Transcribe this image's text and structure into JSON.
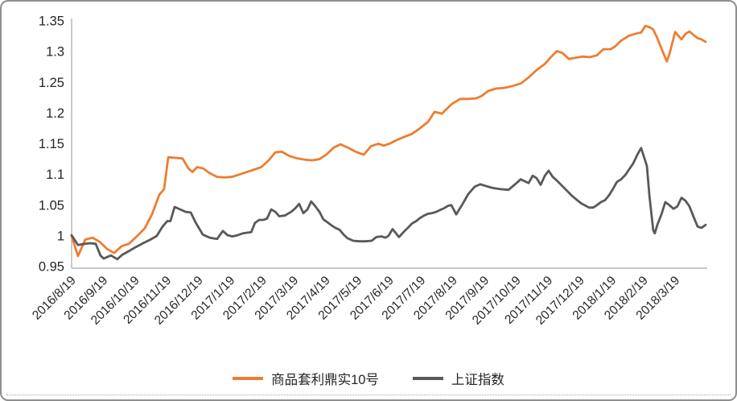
{
  "chart": {
    "background": "#ffffff",
    "border_color": "#8f8f8f",
    "axis_color": "#a8a8a8",
    "text_color": "#262626",
    "y_axis": {
      "labels": [
        "1.35",
        "1.3",
        "1.25",
        "1.2",
        "1.15",
        "1.1",
        "1.05",
        "1",
        "0.95"
      ]
    },
    "legend": [
      {
        "label": "商品套利鼎实10号",
        "color": "#ED7D31"
      },
      {
        "label": "上证指数",
        "color": "#595959"
      }
    ]
  },
  "chart_data": {
    "type": "line",
    "title": "",
    "xlabel": "",
    "ylabel": "",
    "ylim": [
      0.95,
      1.35
    ],
    "y_step": 0.05,
    "grid": false,
    "legend_position": "bottom",
    "categories": [
      "2016/8/19",
      "2016/9/19",
      "2016/10/19",
      "2016/11/19",
      "2016/12/19",
      "2017/1/19",
      "2017/2/19",
      "2017/3/19",
      "2017/4/19",
      "2017/5/19",
      "2017/6/19",
      "2017/7/19",
      "2017/8/19",
      "2017/9/19",
      "2017/10/19",
      "2017/11/19",
      "2017/12/19",
      "2018/1/19",
      "2018/2/19",
      "2018/3/19"
    ],
    "x_note": "points use fractional category-index x (0 = 2016/8/19 tick, 1 unit = 1 month tick)",
    "series": [
      {
        "name": "商品套利鼎实10号",
        "color": "#ED7D31",
        "points": [
          [
            0,
            1.0
          ],
          [
            0.2,
            0.967
          ],
          [
            0.43,
            0.994
          ],
          [
            0.66,
            0.997
          ],
          [
            0.89,
            0.99
          ],
          [
            1.11,
            0.979
          ],
          [
            1.34,
            0.972
          ],
          [
            1.57,
            0.983
          ],
          [
            1.8,
            0.987
          ],
          [
            2.03,
            0.998
          ],
          [
            2.3,
            1.012
          ],
          [
            2.53,
            1.035
          ],
          [
            2.76,
            1.067
          ],
          [
            2.91,
            1.076
          ],
          [
            3.04,
            1.128
          ],
          [
            3.27,
            1.127
          ],
          [
            3.49,
            1.126
          ],
          [
            3.67,
            1.11
          ],
          [
            3.8,
            1.104
          ],
          [
            3.95,
            1.112
          ],
          [
            4.13,
            1.11
          ],
          [
            4.35,
            1.102
          ],
          [
            4.58,
            1.096
          ],
          [
            4.81,
            1.095
          ],
          [
            5.04,
            1.096
          ],
          [
            5.29,
            1.1
          ],
          [
            5.52,
            1.104
          ],
          [
            5.75,
            1.108
          ],
          [
            5.97,
            1.112
          ],
          [
            6.2,
            1.123
          ],
          [
            6.41,
            1.136
          ],
          [
            6.61,
            1.137
          ],
          [
            6.86,
            1.13
          ],
          [
            7.11,
            1.126
          ],
          [
            7.34,
            1.124
          ],
          [
            7.57,
            1.123
          ],
          [
            7.8,
            1.125
          ],
          [
            8.03,
            1.133
          ],
          [
            8.25,
            1.144
          ],
          [
            8.46,
            1.149
          ],
          [
            8.68,
            1.144
          ],
          [
            8.94,
            1.137
          ],
          [
            9.19,
            1.132
          ],
          [
            9.42,
            1.146
          ],
          [
            9.65,
            1.15
          ],
          [
            9.82,
            1.147
          ],
          [
            10.0,
            1.15
          ],
          [
            10.23,
            1.156
          ],
          [
            10.46,
            1.161
          ],
          [
            10.71,
            1.166
          ],
          [
            10.96,
            1.175
          ],
          [
            11.22,
            1.186
          ],
          [
            11.42,
            1.202
          ],
          [
            11.65,
            1.199
          ],
          [
            11.97,
            1.215
          ],
          [
            12.23,
            1.223
          ],
          [
            12.48,
            1.223
          ],
          [
            12.73,
            1.224
          ],
          [
            12.91,
            1.228
          ],
          [
            13.11,
            1.236
          ],
          [
            13.37,
            1.24
          ],
          [
            13.62,
            1.241
          ],
          [
            13.87,
            1.244
          ],
          [
            14.13,
            1.248
          ],
          [
            14.38,
            1.258
          ],
          [
            14.63,
            1.27
          ],
          [
            14.89,
            1.28
          ],
          [
            15.06,
            1.29
          ],
          [
            15.27,
            1.301
          ],
          [
            15.44,
            1.298
          ],
          [
            15.65,
            1.288
          ],
          [
            15.85,
            1.29
          ],
          [
            16.08,
            1.292
          ],
          [
            16.3,
            1.291
          ],
          [
            16.53,
            1.294
          ],
          [
            16.73,
            1.304
          ],
          [
            16.96,
            1.304
          ],
          [
            17.09,
            1.308
          ],
          [
            17.29,
            1.318
          ],
          [
            17.54,
            1.326
          ],
          [
            17.8,
            1.33
          ],
          [
            17.92,
            1.331
          ],
          [
            18.05,
            1.342
          ],
          [
            18.18,
            1.34
          ],
          [
            18.3,
            1.336
          ],
          [
            18.43,
            1.322
          ],
          [
            18.56,
            1.305
          ],
          [
            18.73,
            1.284
          ],
          [
            18.81,
            1.296
          ],
          [
            18.99,
            1.332
          ],
          [
            19.19,
            1.32
          ],
          [
            19.32,
            1.329
          ],
          [
            19.44,
            1.333
          ],
          [
            19.57,
            1.327
          ],
          [
            19.7,
            1.322
          ],
          [
            19.82,
            1.32
          ],
          [
            19.95,
            1.316
          ]
        ]
      },
      {
        "name": "上证指数",
        "color": "#595959",
        "points": [
          [
            0,
            1.001
          ],
          [
            0.2,
            0.985
          ],
          [
            0.43,
            0.987
          ],
          [
            0.58,
            0.988
          ],
          [
            0.76,
            0.987
          ],
          [
            0.91,
            0.968
          ],
          [
            1.01,
            0.963
          ],
          [
            1.14,
            0.966
          ],
          [
            1.24,
            0.968
          ],
          [
            1.34,
            0.965
          ],
          [
            1.44,
            0.962
          ],
          [
            1.59,
            0.969
          ],
          [
            1.8,
            0.975
          ],
          [
            2.03,
            0.982
          ],
          [
            2.25,
            0.988
          ],
          [
            2.48,
            0.994
          ],
          [
            2.68,
            1.0
          ],
          [
            2.86,
            1.015
          ],
          [
            3.01,
            1.024
          ],
          [
            3.11,
            1.024
          ],
          [
            3.24,
            1.047
          ],
          [
            3.42,
            1.043
          ],
          [
            3.59,
            1.039
          ],
          [
            3.75,
            1.038
          ],
          [
            3.9,
            1.022
          ],
          [
            4.13,
            1.002
          ],
          [
            4.35,
            0.997
          ],
          [
            4.58,
            0.995
          ],
          [
            4.76,
            1.008
          ],
          [
            4.91,
            1.001
          ],
          [
            5.06,
            0.999
          ],
          [
            5.22,
            1.001
          ],
          [
            5.39,
            1.004
          ],
          [
            5.65,
            1.006
          ],
          [
            5.77,
            1.021
          ],
          [
            5.9,
            1.026
          ],
          [
            6.03,
            1.026
          ],
          [
            6.15,
            1.028
          ],
          [
            6.28,
            1.043
          ],
          [
            6.41,
            1.039
          ],
          [
            6.53,
            1.032
          ],
          [
            6.71,
            1.033
          ],
          [
            6.91,
            1.039
          ],
          [
            7.04,
            1.045
          ],
          [
            7.16,
            1.052
          ],
          [
            7.29,
            1.037
          ],
          [
            7.42,
            1.043
          ],
          [
            7.54,
            1.056
          ],
          [
            7.67,
            1.048
          ],
          [
            7.8,
            1.039
          ],
          [
            7.92,
            1.027
          ],
          [
            8.05,
            1.022
          ],
          [
            8.18,
            1.017
          ],
          [
            8.3,
            1.013
          ],
          [
            8.43,
            1.01
          ],
          [
            8.56,
            1.002
          ],
          [
            8.68,
            0.996
          ],
          [
            8.86,
            0.992
          ],
          [
            9.06,
            0.991
          ],
          [
            9.24,
            0.991
          ],
          [
            9.44,
            0.992
          ],
          [
            9.59,
            0.998
          ],
          [
            9.75,
            0.999
          ],
          [
            9.87,
            0.997
          ],
          [
            9.97,
            1.0
          ],
          [
            10.1,
            1.011
          ],
          [
            10.3,
            0.998
          ],
          [
            10.46,
            1.007
          ],
          [
            10.58,
            1.013
          ],
          [
            10.71,
            1.02
          ],
          [
            10.84,
            1.024
          ],
          [
            10.96,
            1.029
          ],
          [
            11.09,
            1.033
          ],
          [
            11.22,
            1.036
          ],
          [
            11.34,
            1.037
          ],
          [
            11.47,
            1.039
          ],
          [
            11.59,
            1.042
          ],
          [
            11.72,
            1.045
          ],
          [
            11.85,
            1.049
          ],
          [
            11.95,
            1.05
          ],
          [
            12.1,
            1.035
          ],
          [
            12.28,
            1.05
          ],
          [
            12.48,
            1.068
          ],
          [
            12.68,
            1.08
          ],
          [
            12.86,
            1.084
          ],
          [
            12.99,
            1.082
          ],
          [
            13.24,
            1.078
          ],
          [
            13.49,
            1.076
          ],
          [
            13.75,
            1.075
          ],
          [
            14.0,
            1.086
          ],
          [
            14.13,
            1.092
          ],
          [
            14.25,
            1.089
          ],
          [
            14.38,
            1.086
          ],
          [
            14.51,
            1.098
          ],
          [
            14.63,
            1.094
          ],
          [
            14.76,
            1.083
          ],
          [
            14.89,
            1.098
          ],
          [
            15.01,
            1.106
          ],
          [
            15.14,
            1.096
          ],
          [
            15.27,
            1.09
          ],
          [
            15.52,
            1.077
          ],
          [
            15.77,
            1.064
          ],
          [
            16.03,
            1.053
          ],
          [
            16.28,
            1.046
          ],
          [
            16.41,
            1.046
          ],
          [
            16.53,
            1.05
          ],
          [
            16.66,
            1.055
          ],
          [
            16.78,
            1.058
          ],
          [
            16.91,
            1.066
          ],
          [
            17.04,
            1.077
          ],
          [
            17.16,
            1.088
          ],
          [
            17.29,
            1.092
          ],
          [
            17.42,
            1.099
          ],
          [
            17.54,
            1.108
          ],
          [
            17.67,
            1.118
          ],
          [
            17.8,
            1.132
          ],
          [
            17.92,
            1.143
          ],
          [
            18.1,
            1.114
          ],
          [
            18.18,
            1.066
          ],
          [
            18.3,
            1.009
          ],
          [
            18.35,
            1.004
          ],
          [
            18.43,
            1.018
          ],
          [
            18.56,
            1.035
          ],
          [
            18.68,
            1.055
          ],
          [
            18.81,
            1.05
          ],
          [
            18.94,
            1.044
          ],
          [
            19.06,
            1.048
          ],
          [
            19.19,
            1.062
          ],
          [
            19.32,
            1.057
          ],
          [
            19.44,
            1.048
          ],
          [
            19.57,
            1.031
          ],
          [
            19.7,
            1.015
          ],
          [
            19.82,
            1.013
          ],
          [
            19.95,
            1.018
          ]
        ]
      }
    ]
  }
}
